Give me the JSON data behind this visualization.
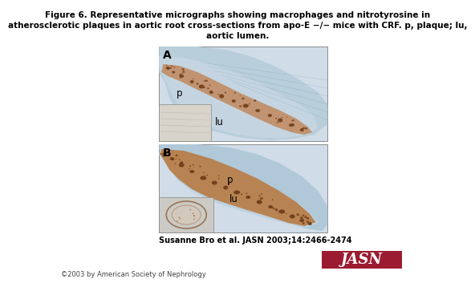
{
  "title_line1": "Figure 6. Representative micrographs showing macrophages and nitrotyrosine in",
  "title_line2": "atherosclerotic plaques in aortic root cross-sections from apo-E −/− mice with CRF. p, plaque; lu,",
  "title_line3": "aortic lumen.",
  "citation": "Susanne Bro et al. JASN 2003;14:2466-2474",
  "copyright": "©2003 by American Society of Nephrology",
  "jasn_text": "JASN",
  "jasn_bg": "#9B1B30",
  "jasn_fg": "#FFFFFF",
  "bg_color": "#FFFFFF",
  "panel_A_label": "A",
  "panel_B_label": "B",
  "panel_p_A": "p",
  "panel_lu_A": "lu",
  "panel_p_B": "p",
  "panel_lu_B": "lu",
  "img_bg_light": "#D0DCE8",
  "img_bg_dark": "#8BAABB",
  "tissue_blue": "#9AB8CC",
  "tissue_blue2": "#7A9DB0",
  "brown_color": "#A0622A",
  "brown_dark": "#6B3A15",
  "inset_bg": "#C8C4BC",
  "title_fontsize": 7.5,
  "citation_fontsize": 7.0,
  "copyright_fontsize": 6.0,
  "jasn_fontsize": 13
}
